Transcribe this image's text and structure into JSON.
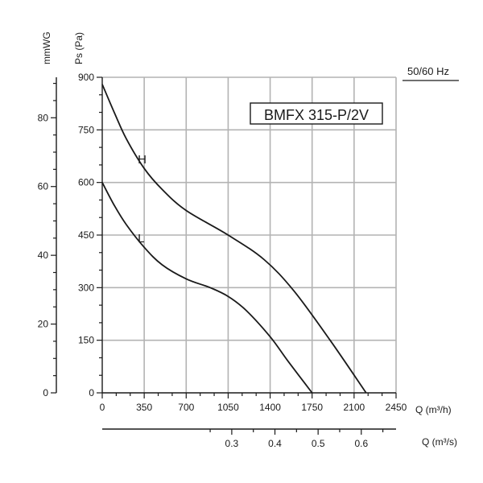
{
  "chart_data": {
    "type": "line",
    "title": "BMFX 315-P/2V",
    "frequency_label": "50/60 Hz",
    "y_left_outer_label": "mmWG",
    "y_left_inner_label": "Ps (Pa)",
    "x_label": "Q (m³/h)",
    "x2_label": "Q (m³/s)",
    "x_ticks": [
      0,
      350,
      700,
      1050,
      1400,
      1750,
      2100,
      2450
    ],
    "x_range": [
      0,
      2450
    ],
    "pa_ticks": [
      0,
      150,
      300,
      450,
      600,
      750,
      900
    ],
    "pa_range": [
      0,
      900
    ],
    "mmwg_ticks": [
      0,
      20,
      40,
      60,
      80
    ],
    "m3s_ticks": [
      "0.3",
      "0.4",
      "0.5",
      "0.6"
    ],
    "grid": true,
    "series": [
      {
        "name": "H",
        "x": [
          0,
          100,
          200,
          350,
          500,
          700,
          1050,
          1350,
          1600,
          1900,
          2200
        ],
        "y": [
          880,
          800,
          725,
          640,
          580,
          520,
          450,
          380,
          290,
          150,
          0
        ]
      },
      {
        "name": "L",
        "x": [
          0,
          100,
          200,
          350,
          500,
          700,
          900,
          1050,
          1200,
          1400,
          1550,
          1750
        ],
        "y": [
          600,
          535,
          480,
          415,
          365,
          325,
          300,
          275,
          235,
          160,
          90,
          0
        ]
      }
    ]
  }
}
